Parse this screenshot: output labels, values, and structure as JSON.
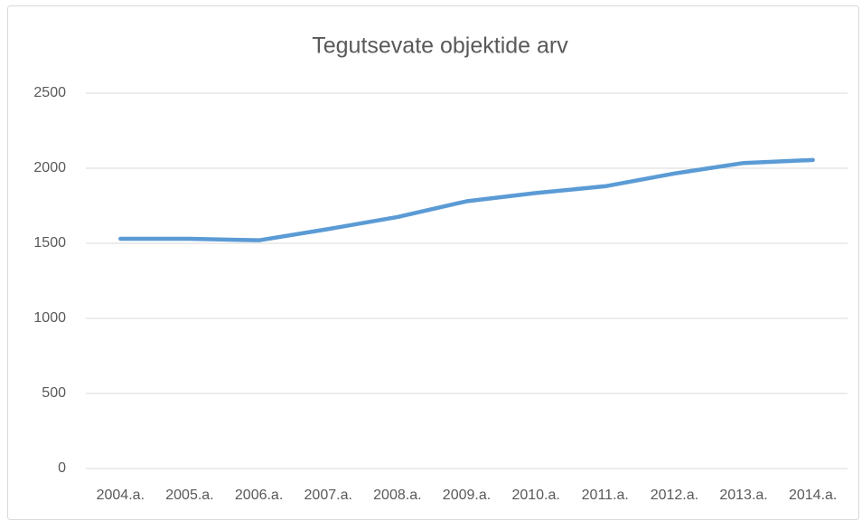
{
  "chart_data": {
    "type": "line",
    "title": "Tegutsevate objektide arv",
    "categories": [
      "2004.a.",
      "2005.a.",
      "2006.a.",
      "2007.a.",
      "2008.a.",
      "2009.a.",
      "2010.a.",
      "2011.a.",
      "2012.a.",
      "2013.a.",
      "2014.a."
    ],
    "values": [
      1530,
      1530,
      1520,
      1595,
      1675,
      1780,
      1835,
      1880,
      1965,
      2035,
      2055
    ],
    "color": "#5b9bd5",
    "ylim": [
      0,
      2500
    ],
    "yticks": [
      0,
      500,
      1000,
      1500,
      2000,
      2500
    ],
    "grid": true
  }
}
